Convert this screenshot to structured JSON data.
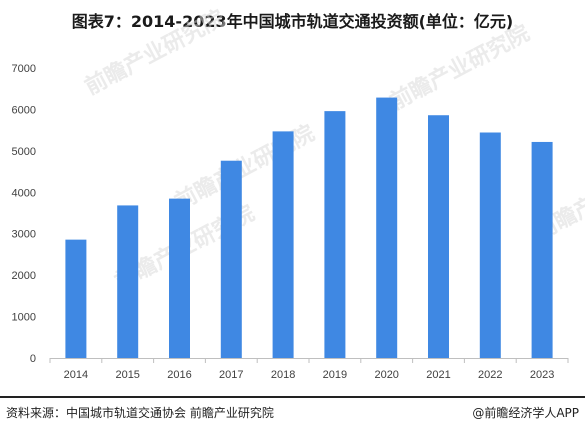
{
  "title": "图表7：2014-2023年中国城市轨道交通投资额(单位：亿元)",
  "footer": {
    "source": "资料来源：中国城市轨道交通协会 前瞻产业研究院",
    "brand": "@前瞻经济学人APP"
  },
  "watermark": {
    "text": "前瞻产业研究院",
    "color": "#d7d7d7"
  },
  "colors": {
    "bar": "#3f88e3",
    "axis": "#bfbfbf",
    "tick_text": "#404040"
  },
  "chart_data": {
    "type": "bar",
    "title": "图表7：2014-2023年中国城市轨道交通投资额(单位：亿元)",
    "categories": [
      "2014",
      "2015",
      "2016",
      "2017",
      "2018",
      "2019",
      "2020",
      "2021",
      "2022",
      "2023"
    ],
    "values": [
      2857,
      3683,
      3847,
      4762,
      5470,
      5959,
      6286,
      5860,
      5443,
      5215
    ],
    "ylim": [
      0,
      7000
    ],
    "yticks": [
      "0",
      "1000",
      "2000",
      "3000",
      "4000",
      "5000",
      "6000",
      "7000"
    ],
    "ytick_values": [
      0,
      1000,
      2000,
      3000,
      4000,
      5000,
      6000,
      7000
    ],
    "xlabel": "",
    "ylabel": "",
    "grid": false,
    "legend": "none"
  }
}
